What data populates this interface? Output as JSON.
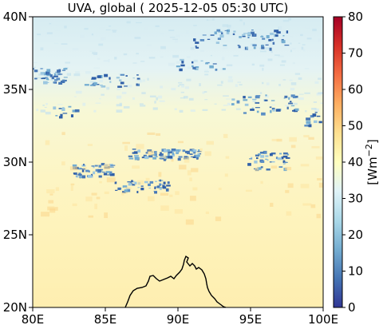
{
  "chart_data": {
    "type": "heatmap",
    "title": "UVA, global ( 2025-12-05 05:30 UTC)",
    "xlabel": "",
    "ylabel": "",
    "x_range": [
      80,
      100
    ],
    "y_range": [
      20,
      40
    ],
    "x_ticks": [
      80,
      85,
      90,
      95,
      100
    ],
    "x_tick_labels": [
      "80E",
      "85E",
      "90E",
      "95E",
      "100E"
    ],
    "y_ticks": [
      20,
      25,
      30,
      35,
      40
    ],
    "y_tick_labels": [
      "20N",
      "25N",
      "30N",
      "35N",
      "40N"
    ],
    "colorbar": {
      "label_base": "[Wm",
      "label_exp": "−2",
      "label_end": "]",
      "range": [
        0,
        80
      ],
      "ticks": [
        0,
        10,
        20,
        30,
        40,
        50,
        60,
        70,
        80
      ],
      "tick_labels": [
        "0",
        "10",
        "20",
        "30",
        "40",
        "50",
        "60",
        "70",
        "80"
      ],
      "colormap": "RdYlBu_r"
    },
    "field_description_values": {
      "north_background_35_40N": 30,
      "mid_background_27_35N": 37,
      "south_background_20_25N": 41,
      "cloud_band_values": 18,
      "scattered_cloud_values": 22
    },
    "coastline": "Bay of Bengal / Bangladesh coast near 87-93E, 20-22N"
  },
  "colors": {
    "colormap_stops": [
      "#313695",
      "#4575b4",
      "#74add1",
      "#abd9e9",
      "#e0f3f8",
      "#ffffbf",
      "#fee090",
      "#fdae61",
      "#f46d43",
      "#d73027",
      "#a50026"
    ]
  }
}
